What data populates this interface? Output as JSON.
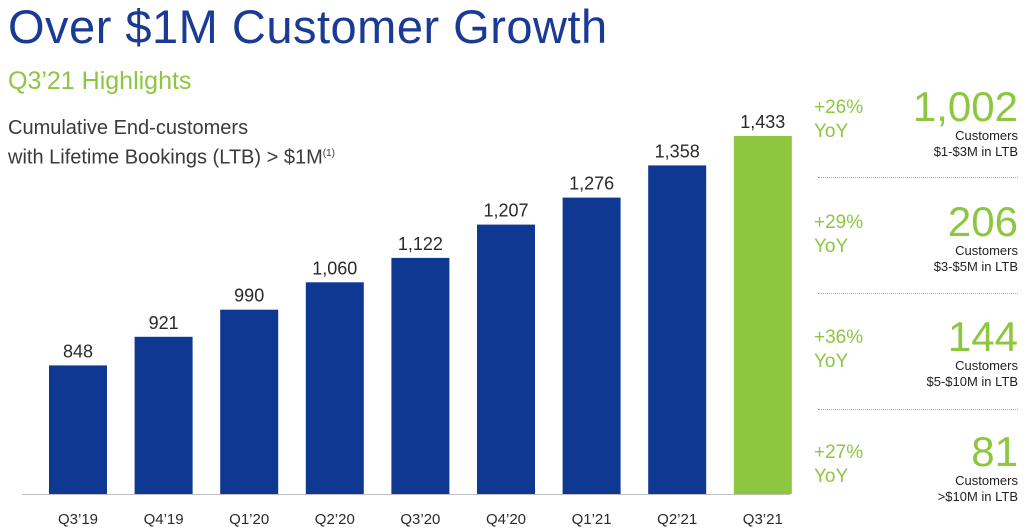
{
  "header": {
    "title": "Over $1M Customer Growth",
    "subtitle": "Q3’21 Highlights"
  },
  "chart_data": {
    "type": "bar",
    "title_line1": "Cumulative End-customers",
    "title_line2": "with Lifetime Bookings (LTB) > $1M",
    "title_footnote": "(1)",
    "categories": [
      "Q3’19",
      "Q4’19",
      "Q1’20",
      "Q2’20",
      "Q3’20",
      "Q4’20",
      "Q1’21",
      "Q2’21",
      "Q3’21"
    ],
    "values": [
      848,
      921,
      990,
      1060,
      1122,
      1207,
      1276,
      1358,
      1433
    ],
    "data_labels": [
      "848",
      "921",
      "990",
      "1,060",
      "1,122",
      "1,207",
      "1,276",
      "1,358",
      "1,433"
    ],
    "highlight_index": 8,
    "colors": {
      "bar": "#0f3893",
      "highlight": "#8dc63f"
    },
    "grid": false,
    "ylim": [
      520,
      1433
    ]
  },
  "panel": {
    "items": [
      {
        "pct": "+26%",
        "yoy": "YoY",
        "value": "1,002",
        "label": "Customers",
        "range": "$1-$3M in LTB"
      },
      {
        "pct": "+29%",
        "yoy": "YoY",
        "value": "206",
        "label": "Customers",
        "range": "$3-$5M in LTB"
      },
      {
        "pct": "+36%",
        "yoy": "YoY",
        "value": "144",
        "label": "Customers",
        "range": "$5-$10M in LTB"
      },
      {
        "pct": "+27%",
        "yoy": "YoY",
        "value": "81",
        "label": "Customers",
        "range": ">$10M in LTB"
      }
    ]
  },
  "colors": {
    "title": "#1a3a94",
    "accent": "#8dc63f",
    "text": "#3a3a3a"
  }
}
